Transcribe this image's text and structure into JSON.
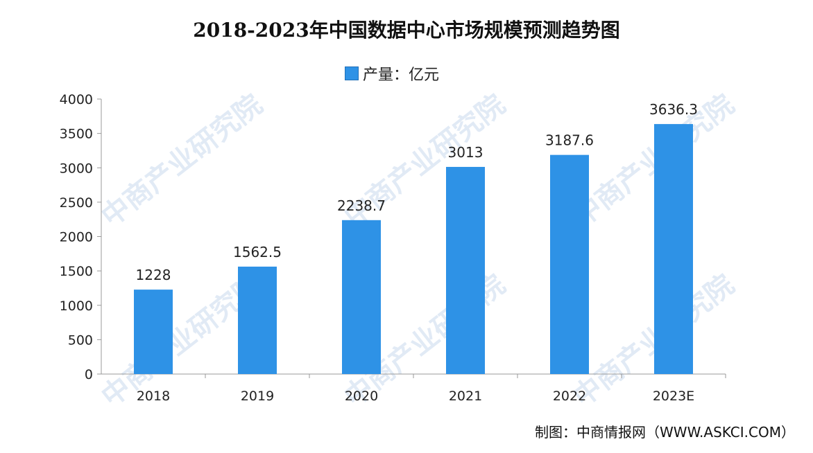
{
  "chart_data": {
    "type": "bar",
    "title": "2018-2023年中国数据中心市场规模预测趋势图",
    "legend": [
      {
        "name": "产量：亿元",
        "color": "#2E92E6"
      }
    ],
    "categories": [
      "2018",
      "2019",
      "2020",
      "2021",
      "2022",
      "2023E"
    ],
    "series": [
      {
        "name": "产量：亿元",
        "values": [
          1228,
          1562.5,
          2238.7,
          3013,
          3187.6,
          3636.3
        ],
        "labels": [
          "1228",
          "1562.5",
          "2238.7",
          "3013",
          "3187.6",
          "3636.3"
        ]
      }
    ],
    "yticks": [
      "0",
      "500",
      "1000",
      "1500",
      "2000",
      "2500",
      "3000",
      "3500",
      "4000"
    ],
    "ylim": [
      0,
      4000
    ],
    "grid": false,
    "legend_position": "top-center",
    "bar_color": "#2E92E6"
  },
  "footer": {
    "source": "制图：中商情报网（WWW.ASKCI.COM）"
  },
  "watermark": {
    "text": "中商产业研究院"
  }
}
